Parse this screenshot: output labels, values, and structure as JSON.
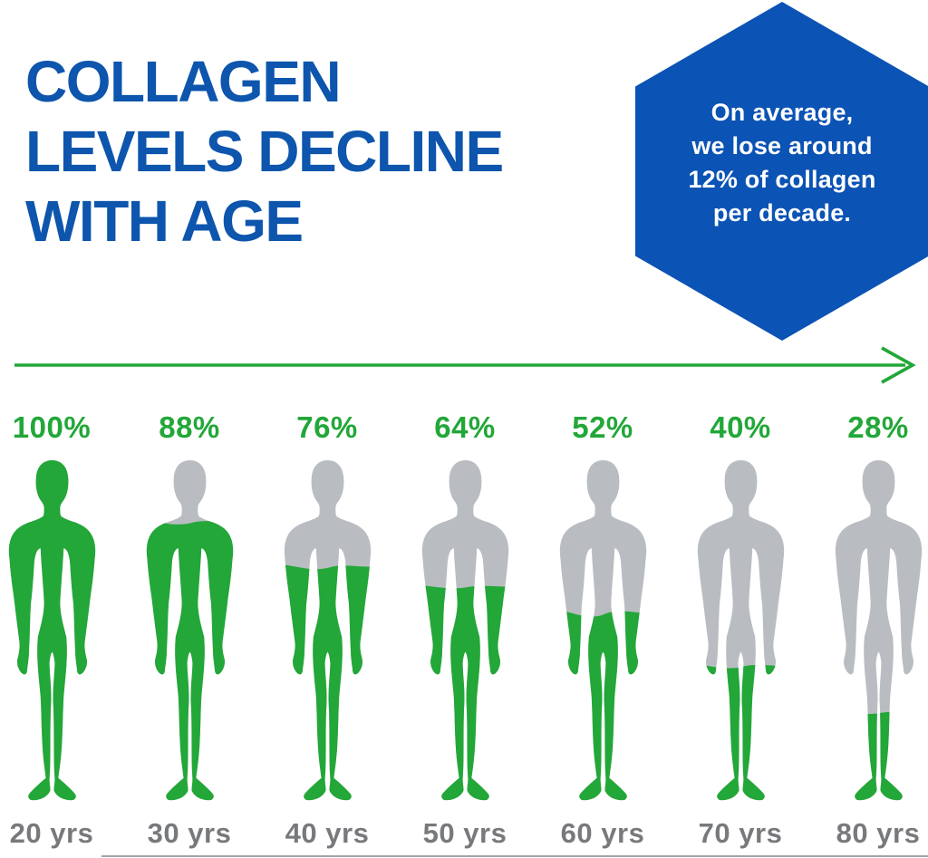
{
  "page": {
    "background": "#ffffff"
  },
  "title": {
    "lines": [
      "COLLAGEN",
      "LEVELS DECLINE",
      "WITH AGE"
    ],
    "color": "#0d55ad"
  },
  "badge": {
    "shape": "hexagon",
    "bg_color": "#0b53b4",
    "text_color": "#ffffff",
    "lines": [
      "On average,",
      "we lose around",
      "12% of collagen",
      "per decade."
    ]
  },
  "timeline": {
    "arrow_icon": "right-arrow",
    "color": "#22a738",
    "direction": "right"
  },
  "figures": [
    {
      "percent": "100%",
      "age": "20 yrs",
      "collagen_pct": 100,
      "fill_line": -20,
      "wave_amp": 0
    },
    {
      "percent": "88%",
      "age": "30 yrs",
      "collagen_pct": 88,
      "fill_line": 70,
      "wave_amp": 9
    },
    {
      "percent": "76%",
      "age": "40 yrs",
      "collagen_pct": 76,
      "fill_line": 120,
      "wave_amp": 10
    },
    {
      "percent": "64%",
      "age": "50 yrs",
      "collagen_pct": 64,
      "fill_line": 143,
      "wave_amp": 7
    },
    {
      "percent": "52%",
      "age": "60 yrs",
      "collagen_pct": 52,
      "fill_line": 171,
      "wave_amp": 15
    },
    {
      "percent": "40%",
      "age": "70 yrs",
      "collagen_pct": 40,
      "fill_line": 232,
      "wave_amp": 9
    },
    {
      "percent": "28%",
      "age": "80 yrs",
      "collagen_pct": 28,
      "fill_line": 285,
      "wave_amp": 6
    }
  ],
  "colors": {
    "green": "#22a738",
    "body_gray": "#b9bdc1",
    "age_gray": "#77797c",
    "title_blue": "#0d55ad",
    "badge_blue": "#0b53b4",
    "divider_gray": "#9fa4a8"
  },
  "chart_data": {
    "type": "bar",
    "variant": "human-body-pictogram",
    "categories": [
      "20 yrs",
      "30 yrs",
      "40 yrs",
      "50 yrs",
      "60 yrs",
      "70 yrs",
      "80 yrs"
    ],
    "values": [
      100,
      88,
      76,
      64,
      52,
      40,
      28
    ],
    "unit": "%",
    "title": "COLLAGEN LEVELS DECLINE WITH AGE",
    "annotation": "On average, we lose around 12% of collagen per decade.",
    "ylim": [
      0,
      100
    ],
    "legend": "none",
    "grid": false,
    "bar_color": "#22a738",
    "empty_color": "#b9bdc1"
  }
}
